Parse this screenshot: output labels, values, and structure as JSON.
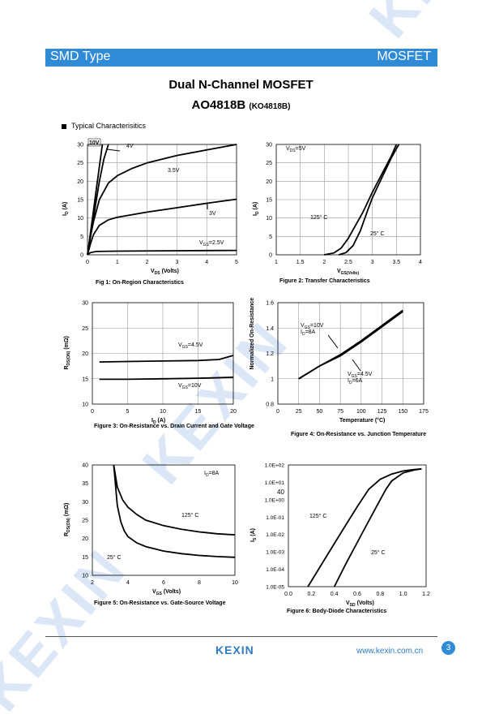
{
  "header": {
    "left": "SMD Type",
    "right": "MOSFET"
  },
  "title": "Dual N-Channel MOSFET",
  "part": "AO4818B",
  "part_alt": "(KO4818B)",
  "section": "Typical  Characterisitics",
  "footer": {
    "logo": "KEXIN",
    "url": "www.kexin.com.cn",
    "page": "3"
  },
  "watermark": "KEXIN",
  "chart_data": [
    {
      "type": "line",
      "caption": "Fig 1: On-Region Characteristics",
      "xlabel": "V_DS (Volts)",
      "ylabel": "I_D (A)",
      "xlim": [
        0,
        5
      ],
      "ylim": [
        0,
        30
      ],
      "xticks": [
        "0",
        "1",
        "2",
        "3",
        "4",
        "5"
      ],
      "yticks": [
        "0",
        "5",
        "10",
        "15",
        "20",
        "25",
        "30"
      ],
      "grid": true,
      "series": [
        {
          "name": "10V",
          "x": [
            0,
            0.1,
            0.2,
            0.3,
            0.4,
            0.5
          ],
          "y": [
            0,
            6,
            12,
            18,
            24,
            30
          ]
        },
        {
          "name": "4V",
          "x": [
            0,
            0.1,
            0.2,
            0.3,
            0.4,
            0.55,
            0.7
          ],
          "y": [
            0,
            5,
            10,
            15,
            20,
            26,
            30
          ]
        },
        {
          "name": "3.5V",
          "x": [
            0,
            0.1,
            0.2,
            0.4,
            0.7,
            1,
            1.5,
            2,
            3,
            4,
            5
          ],
          "y": [
            0,
            5,
            9,
            15,
            19.5,
            21.5,
            23.5,
            25,
            27,
            28.5,
            30
          ]
        },
        {
          "name": "3V",
          "x": [
            0,
            0.1,
            0.2,
            0.4,
            0.7,
            1,
            2,
            3,
            4,
            5
          ],
          "y": [
            0,
            3,
            5.5,
            8,
            9.5,
            10.2,
            11.6,
            12.8,
            14,
            15.1
          ]
        },
        {
          "name": "V_GS=2.5V",
          "x": [
            0,
            0.1,
            0.3,
            1,
            3,
            5
          ],
          "y": [
            0,
            0.6,
            0.9,
            1,
            1.1,
            1.2
          ]
        }
      ]
    },
    {
      "type": "line",
      "caption": "Figure 2: Transfer Characteristics",
      "xlabel": "V_GS(Volts)",
      "ylabel": "I_D (A)",
      "xlim": [
        1,
        4
      ],
      "ylim": [
        0,
        30
      ],
      "xticks": [
        "1",
        "1.5",
        "2",
        "2.5",
        "3",
        "3.5",
        "4"
      ],
      "yticks": [
        "0",
        "5",
        "10",
        "15",
        "20",
        "25",
        "30"
      ],
      "grid": true,
      "annotation": "V_DS=5V",
      "series": [
        {
          "name": "125° C",
          "x": [
            2,
            2.2,
            2.35,
            2.5,
            2.65,
            2.8,
            3,
            3.2,
            3.4,
            3.5
          ],
          "y": [
            0,
            0.5,
            1.8,
            4.5,
            8,
            11.5,
            17,
            22,
            27,
            30
          ]
        },
        {
          "name": "25° C",
          "x": [
            2.3,
            2.45,
            2.6,
            2.75,
            2.9,
            3,
            3.2,
            3.4,
            3.55
          ],
          "y": [
            0,
            0.6,
            2.5,
            6.5,
            12,
            15.5,
            21,
            26.5,
            30
          ]
        }
      ]
    },
    {
      "type": "line",
      "caption": "Figure 3: On-Resistance vs. Drain Current and Gate Voltage",
      "xlabel": "I_D (A)",
      "ylabel": "R_DS(ON) (mΩ)",
      "xlim": [
        0,
        20
      ],
      "ylim": [
        10,
        30
      ],
      "xticks": [
        "0",
        "5",
        "10",
        "15",
        "20"
      ],
      "yticks": [
        "10",
        "15",
        "20",
        "25",
        "30"
      ],
      "grid": true,
      "series": [
        {
          "name": "V_GS=4.5V",
          "x": [
            1,
            5,
            10,
            15,
            18,
            20
          ],
          "y": [
            18.3,
            18.4,
            18.5,
            18.6,
            18.8,
            19.6
          ]
        },
        {
          "name": "V_GS=10V",
          "x": [
            1,
            5,
            10,
            15,
            20
          ],
          "y": [
            14.9,
            14.9,
            15.0,
            15.1,
            15.3
          ]
        }
      ]
    },
    {
      "type": "line",
      "caption": "Figure 4: On-Resistance vs. Junction Temperature",
      "xlabel": "Temperature (°C)",
      "ylabel": "Normalized On-Resistance",
      "xlim": [
        0,
        175
      ],
      "ylim": [
        0.8,
        1.6
      ],
      "xticks": [
        "0",
        "25",
        "50",
        "75",
        "100",
        "125",
        "150",
        "175"
      ],
      "yticks": [
        "0.8",
        "1",
        "1.2",
        "1.4",
        "1.6"
      ],
      "grid": true,
      "series": [
        {
          "name": "V_GS=10V, I_D=8A",
          "x": [
            25,
            50,
            75,
            100,
            125,
            150
          ],
          "y": [
            1.0,
            1.1,
            1.19,
            1.3,
            1.42,
            1.54
          ]
        },
        {
          "name": "V_GS=4.5V, I_D=6A",
          "x": [
            25,
            50,
            75,
            100,
            125,
            150
          ],
          "y": [
            1.0,
            1.1,
            1.18,
            1.29,
            1.41,
            1.53
          ]
        }
      ]
    },
    {
      "type": "line",
      "caption": "Figure 5: On-Resistance vs. Gate-Source Voltage",
      "xlabel": "V_GS (Volts)",
      "ylabel": "R_DS(ON) (mΩ)",
      "xlim": [
        2,
        10
      ],
      "ylim": [
        10,
        40
      ],
      "xticks": [
        "2",
        "4",
        "6",
        "8",
        "10"
      ],
      "yticks": [
        "10",
        "15",
        "20",
        "25",
        "30",
        "35",
        "40"
      ],
      "grid": false,
      "annotation": "I_D=8A",
      "series": [
        {
          "name": "125° C",
          "x": [
            3.2,
            3.4,
            3.7,
            4,
            4.5,
            5,
            6,
            7,
            8,
            9,
            10
          ],
          "y": [
            40,
            34,
            30.5,
            28.5,
            26.5,
            25,
            23.5,
            22.5,
            21.8,
            21.3,
            21
          ]
        },
        {
          "name": "25° C",
          "x": [
            3.2,
            3.4,
            3.6,
            3.8,
            4,
            4.5,
            5,
            6,
            7,
            8,
            9,
            10
          ],
          "y": [
            40,
            29,
            24.5,
            22,
            20.5,
            18.8,
            17.8,
            16.6,
            15.9,
            15.4,
            15.1,
            14.9
          ]
        }
      ]
    },
    {
      "type": "line",
      "caption": "Figure 6: Body-Diode Characteristics",
      "xlabel": "V_SD (Volts)",
      "ylabel": "I_S (A)",
      "xlim": [
        0,
        1.2
      ],
      "yscale": "log",
      "ylim": [
        1e-05,
        100
      ],
      "xticks": [
        "0.0",
        "0.2",
        "0.4",
        "0.6",
        "0.8",
        "1.0",
        "1.2"
      ],
      "yticks": [
        "1.0E-05",
        "1.0E-04",
        "1.0E-03",
        "1.0E-02",
        "1.0E-01",
        "1.0E+00",
        "1.0E+01",
        "1.0E+02"
      ],
      "extra_label": "40",
      "grid": false,
      "series": [
        {
          "name": "125° C",
          "x": [
            0.17,
            0.3,
            0.4,
            0.5,
            0.6,
            0.7,
            0.8,
            0.9,
            1.0,
            1.1,
            1.16
          ],
          "y": [
            1e-05,
            0.00025,
            0.003,
            0.035,
            0.4,
            4,
            15,
            30,
            45,
            55,
            60
          ]
        },
        {
          "name": "25° C",
          "x": [
            0.4,
            0.5,
            0.6,
            0.7,
            0.8,
            0.85,
            0.9,
            1.0,
            1.1,
            1.16
          ],
          "y": [
            1e-05,
            0.0002,
            0.0035,
            0.06,
            1,
            4,
            12,
            35,
            52,
            60
          ]
        }
      ]
    }
  ]
}
